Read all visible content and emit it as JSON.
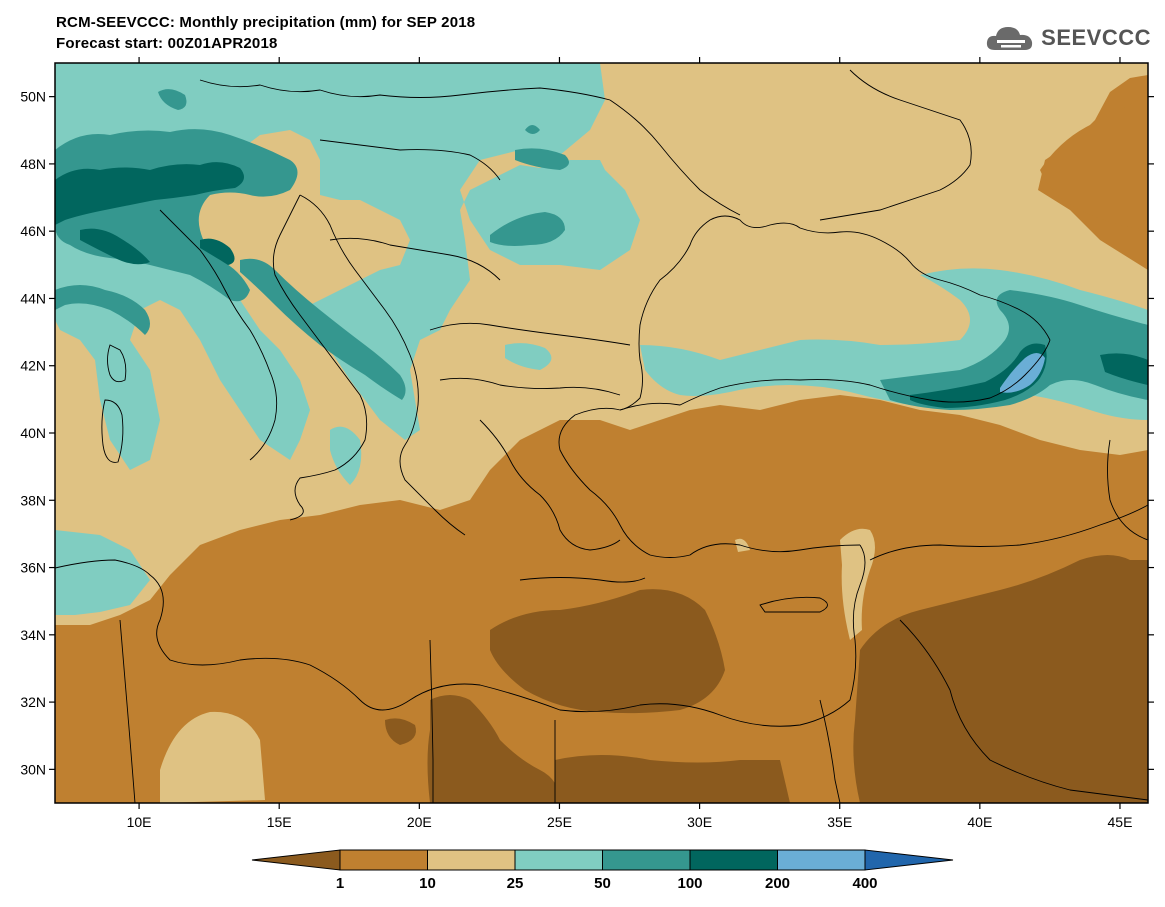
{
  "header": {
    "title": "RCM-SEEVCCC: Monthly precipitation (mm) for SEP 2018",
    "subtitle": "Forecast start: 00Z01APR2018"
  },
  "logo": {
    "text": "SEEVCCC",
    "icon": "cloud-icon"
  },
  "map": {
    "lat_range": [
      29,
      51
    ],
    "lon_range": [
      7,
      46
    ],
    "lat_ticks": [
      {
        "value": 50,
        "label": "50N"
      },
      {
        "value": 48,
        "label": "48N"
      },
      {
        "value": 46,
        "label": "46N"
      },
      {
        "value": 44,
        "label": "44N"
      },
      {
        "value": 42,
        "label": "42N"
      },
      {
        "value": 40,
        "label": "40N"
      },
      {
        "value": 38,
        "label": "38N"
      },
      {
        "value": 36,
        "label": "36N"
      },
      {
        "value": 34,
        "label": "34N"
      },
      {
        "value": 32,
        "label": "32N"
      },
      {
        "value": 30,
        "label": "30N"
      }
    ],
    "lon_ticks": [
      {
        "value": 10,
        "label": "10E"
      },
      {
        "value": 15,
        "label": "15E"
      },
      {
        "value": 20,
        "label": "20E"
      },
      {
        "value": 25,
        "label": "25E"
      },
      {
        "value": 30,
        "label": "30E"
      },
      {
        "value": 35,
        "label": "35E"
      },
      {
        "value": 40,
        "label": "40E"
      },
      {
        "value": 45,
        "label": "45E"
      }
    ]
  },
  "legend": {
    "labels": [
      "1",
      "10",
      "25",
      "50",
      "100",
      "200",
      "400"
    ],
    "colors": [
      "#8b5a1e",
      "#bf8030",
      "#dfc283",
      "#80cdc1",
      "#35978f",
      "#01665e",
      "#6aaed6",
      "#2166ac"
    ]
  }
}
